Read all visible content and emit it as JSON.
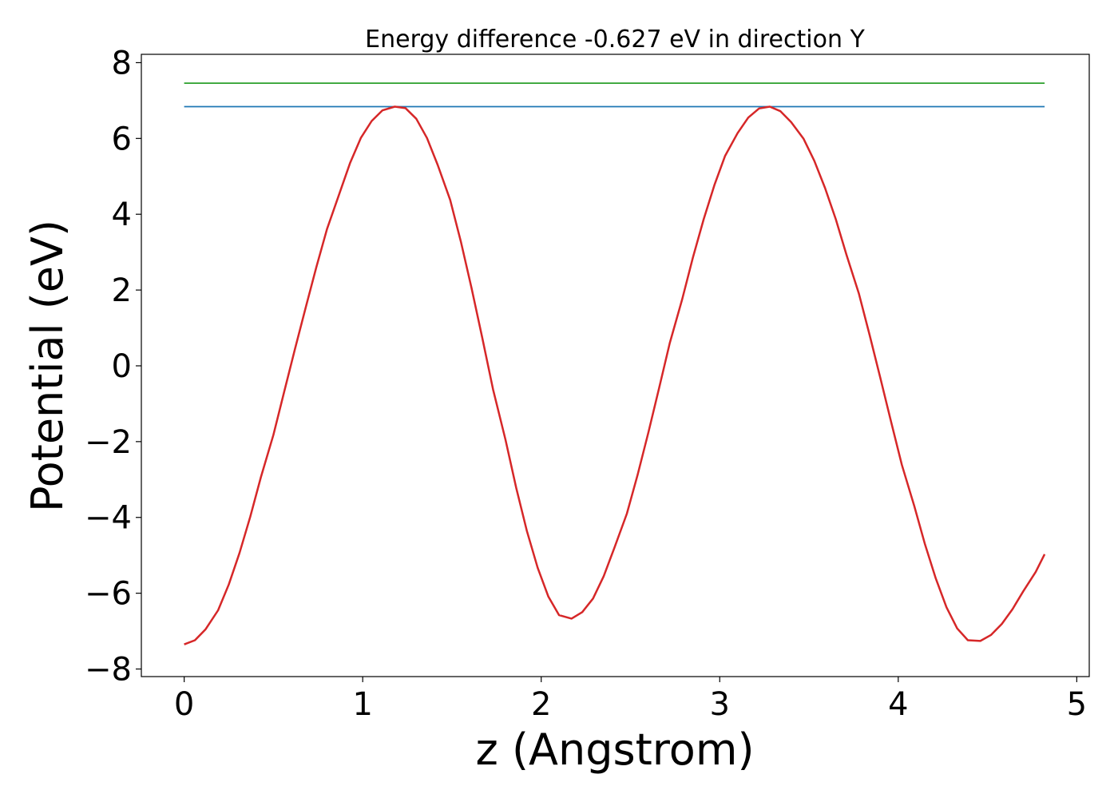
{
  "chart_data": {
    "type": "line",
    "title": "Energy difference -0.627 eV in direction Y",
    "xlabel": "z (Angstrom)",
    "ylabel": "Potential (eV)",
    "xlim": [
      -0.24,
      5.07
    ],
    "ylim": [
      -8.2,
      8.22
    ],
    "x_ticks": [
      0,
      1,
      2,
      3,
      4,
      5
    ],
    "x_tick_labels": [
      "0",
      "1",
      "2",
      "3",
      "4",
      "5"
    ],
    "y_ticks": [
      -8,
      -6,
      -4,
      -2,
      0,
      2,
      4,
      6,
      8
    ],
    "y_tick_labels": [
      "−8",
      "−6",
      "−4",
      "−2",
      "0",
      "2",
      "4",
      "6",
      "8"
    ],
    "grid": false,
    "legend": "none",
    "series": [
      {
        "color": "#2ca02c",
        "x": [
          0,
          4.82
        ],
        "y": [
          7.46,
          7.46
        ]
      },
      {
        "color": "#1f77b4",
        "x": [
          0,
          4.82
        ],
        "y": [
          6.84,
          6.84
        ]
      },
      {
        "color": "#d62728",
        "x": [
          0,
          0.06,
          0.12,
          0.19,
          0.25,
          0.31,
          0.37,
          0.43,
          0.5,
          0.56,
          0.62,
          0.68,
          0.74,
          0.8,
          0.87,
          0.93,
          0.99,
          1.05,
          1.11,
          1.18,
          1.24,
          1.3,
          1.36,
          1.42,
          1.49,
          1.55,
          1.61,
          1.67,
          1.73,
          1.8,
          1.86,
          1.92,
          1.98,
          2.04,
          2.1,
          2.17,
          2.23,
          2.29,
          2.35,
          2.41,
          2.48,
          2.54,
          2.6,
          2.66,
          2.72,
          2.79,
          2.85,
          2.91,
          2.97,
          3.03,
          3.1,
          3.16,
          3.22,
          3.28,
          3.34,
          3.4,
          3.47,
          3.53,
          3.59,
          3.65,
          3.71,
          3.78,
          3.84,
          3.9,
          3.96,
          4.02,
          4.09,
          4.15,
          4.21,
          4.27,
          4.33,
          4.39,
          4.46,
          4.52,
          4.58,
          4.64,
          4.7,
          4.77,
          4.82
        ],
        "y": [
          -7.35,
          -7.24,
          -6.95,
          -6.45,
          -5.77,
          -4.94,
          -3.98,
          -2.93,
          -1.82,
          -0.69,
          0.43,
          1.53,
          2.6,
          3.61,
          4.55,
          5.36,
          6.02,
          6.46,
          6.74,
          6.84,
          6.8,
          6.52,
          6.01,
          5.3,
          4.38,
          3.28,
          2.05,
          0.73,
          -0.62,
          -1.95,
          -3.22,
          -4.36,
          -5.33,
          -6.09,
          -6.58,
          -6.67,
          -6.5,
          -6.14,
          -5.55,
          -4.8,
          -3.9,
          -2.88,
          -1.76,
          -0.59,
          0.6,
          1.76,
          2.86,
          3.87,
          4.77,
          5.54,
          6.14,
          6.55,
          6.79,
          6.84,
          6.72,
          6.43,
          5.99,
          5.41,
          4.69,
          3.87,
          2.93,
          1.9,
          0.81,
          -0.33,
          -1.48,
          -2.61,
          -3.7,
          -4.71,
          -5.61,
          -6.37,
          -6.93,
          -7.24,
          -7.26,
          -7.1,
          -6.81,
          -6.42,
          -5.95,
          -5.44,
          -4.97
        ],
        "line_width": 2.5
      }
    ]
  }
}
